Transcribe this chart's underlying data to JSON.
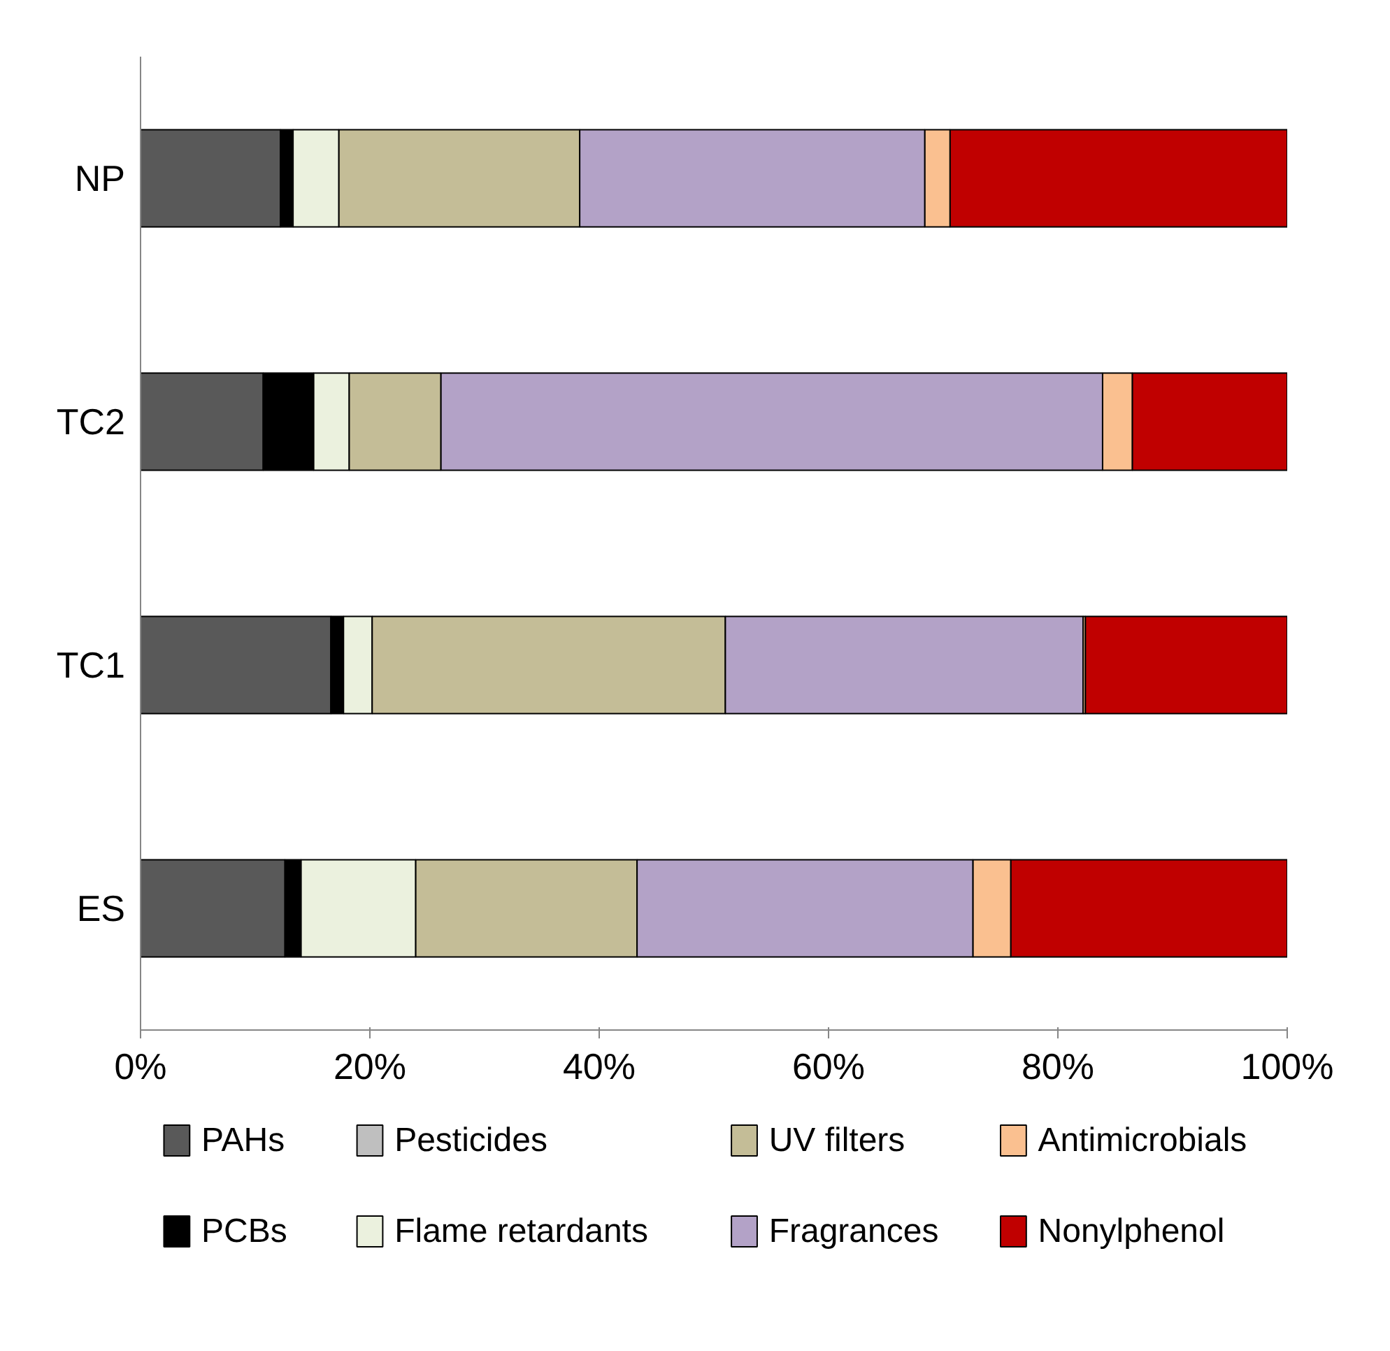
{
  "chart_data": {
    "type": "bar",
    "orientation": "horizontal",
    "stacked": true,
    "categories": [
      "NP",
      "TC2",
      "TC1",
      "ES"
    ],
    "xlim": [
      0,
      100
    ],
    "xticks": [
      {
        "value": 0,
        "label": "0%"
      },
      {
        "value": 20,
        "label": "20%"
      },
      {
        "value": 40,
        "label": "40%"
      },
      {
        "value": 60,
        "label": "60%"
      },
      {
        "value": 80,
        "label": "80%"
      },
      {
        "value": 100,
        "label": "100%"
      }
    ],
    "grid": false,
    "legend": "bottom",
    "series": [
      {
        "name": "PAHs",
        "color": "#595959",
        "values": [
          12.2,
          10.7,
          16.6,
          12.6
        ]
      },
      {
        "name": "PCBs",
        "color": "#000000",
        "values": [
          1.1,
          4.4,
          1.1,
          1.4
        ]
      },
      {
        "name": "Pesticides",
        "color": "#bfbfbf",
        "values": [
          0,
          0,
          0,
          0
        ]
      },
      {
        "name": "Flame retardants",
        "color": "#ebf1de",
        "values": [
          4.0,
          3.1,
          2.5,
          10.0
        ]
      },
      {
        "name": "UV filters",
        "color": "#c4bd97",
        "values": [
          21.0,
          8.0,
          30.8,
          19.3
        ]
      },
      {
        "name": "Fragrances",
        "color": "#b3a2c7",
        "values": [
          30.1,
          57.7,
          31.2,
          29.3
        ]
      },
      {
        "name": "Antimicrobials",
        "color": "#fac090",
        "values": [
          2.2,
          2.6,
          0.2,
          3.3
        ]
      },
      {
        "name": "Nonylphenol",
        "color": "#c00000",
        "values": [
          29.4,
          13.5,
          17.6,
          24.1
        ]
      }
    ]
  }
}
